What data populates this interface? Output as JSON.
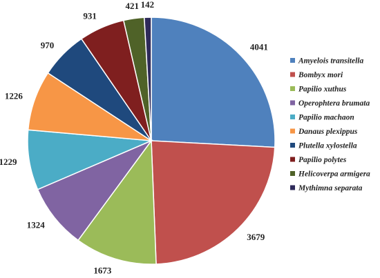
{
  "chart_data": {
    "type": "pie",
    "title": "",
    "legend_position": "right",
    "slices": [
      {
        "label": "Amyelois transitella",
        "value": 4041,
        "color": "#4f81bd"
      },
      {
        "label": "Bombyx mori",
        "value": 3679,
        "color": "#c0504d"
      },
      {
        "label": "Papilio xuthus",
        "value": 1673,
        "color": "#9bbb59"
      },
      {
        "label": "Operophtera brumata",
        "value": 1324,
        "color": "#8064a2"
      },
      {
        "label": "Papilio machaon",
        "value": 1229,
        "color": "#4bacc6"
      },
      {
        "label": "Danaus plexippus",
        "value": 1226,
        "color": "#f79646"
      },
      {
        "label": "Plutella xylostella",
        "value": 970,
        "color": "#1f497d"
      },
      {
        "label": "Papilio polytes",
        "value": 931,
        "color": "#7f1f1f"
      },
      {
        "label": "Helicoverpa armigera",
        "value": 421,
        "color": "#4f6228"
      },
      {
        "label": "Mythimna separata",
        "value": 142,
        "color": "#2e2a5a"
      }
    ]
  }
}
